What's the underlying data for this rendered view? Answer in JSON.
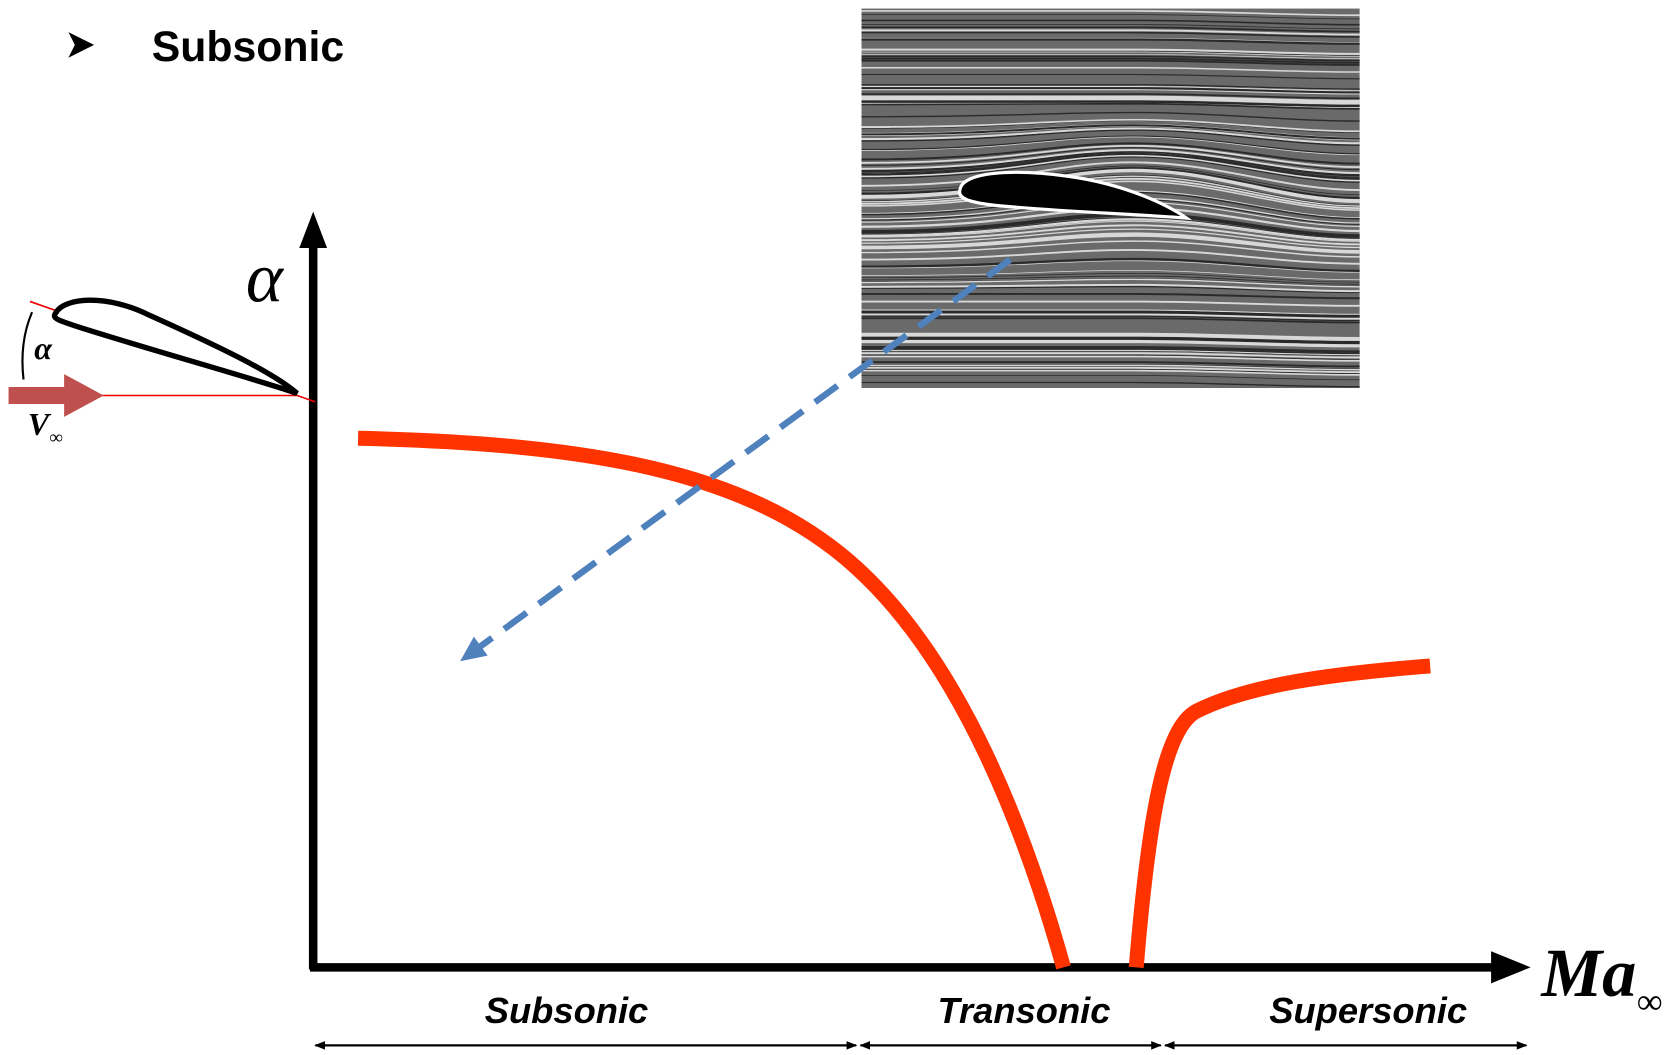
{
  "header": {
    "title": "Subsonic"
  },
  "axes": {
    "y": "α",
    "x": "Ma",
    "x_subscript": "∞"
  },
  "inset": {
    "angle": "α",
    "velocity": "V",
    "velocity_subscript": "∞"
  },
  "regimes": [
    "Subsonic",
    "Transonic",
    "Supersonic"
  ]
}
